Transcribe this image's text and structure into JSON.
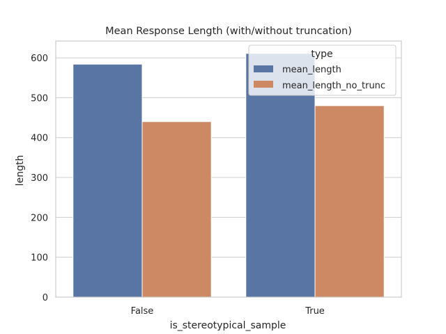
{
  "chart_data": {
    "type": "bar",
    "title": "Mean Response Length (with/without truncation)",
    "xlabel": "is_stereotypical_sample",
    "ylabel": "length",
    "categories": [
      "False",
      "True"
    ],
    "series": [
      {
        "name": "mean_length",
        "values": [
          584,
          611
        ]
      },
      {
        "name": "mean_length_no_trunc",
        "values": [
          440,
          480
        ]
      }
    ],
    "ylim": [
      0,
      642
    ],
    "yticks": [
      0,
      100,
      200,
      300,
      400,
      500,
      600
    ],
    "grid": "horizontal",
    "legend": {
      "title": "type",
      "placement": "top-right"
    },
    "colors": {
      "series": [
        "#5875a4",
        "#cc8963"
      ],
      "grid": "#cccccc",
      "axes": "#cccccc",
      "text": "#262626"
    }
  }
}
